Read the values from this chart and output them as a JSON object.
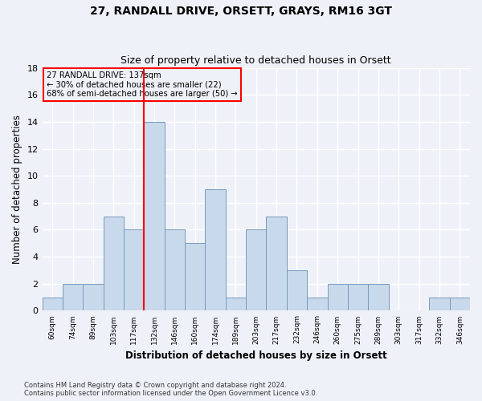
{
  "title_line1": "27, RANDALL DRIVE, ORSETT, GRAYS, RM16 3GT",
  "title_line2": "Size of property relative to detached houses in Orsett",
  "xlabel": "Distribution of detached houses by size in Orsett",
  "ylabel": "Number of detached properties",
  "footer": "Contains HM Land Registry data © Crown copyright and database right 2024.\nContains public sector information licensed under the Open Government Licence v3.0.",
  "bar_labels": [
    "60sqm",
    "74sqm",
    "89sqm",
    "103sqm",
    "117sqm",
    "132sqm",
    "146sqm",
    "160sqm",
    "174sqm",
    "189sqm",
    "203sqm",
    "217sqm",
    "232sqm",
    "246sqm",
    "260sqm",
    "275sqm",
    "289sqm",
    "303sqm",
    "317sqm",
    "332sqm",
    "346sqm"
  ],
  "bar_values": [
    1,
    2,
    2,
    7,
    6,
    14,
    6,
    5,
    9,
    1,
    6,
    7,
    3,
    1,
    2,
    2,
    2,
    0,
    0,
    1,
    1
  ],
  "bar_color": "#c9d9ec",
  "bar_edge_color": "#7799bb",
  "bg_color": "#eef2f8",
  "grid_color": "#ffffff",
  "vline_color": "red",
  "vline_x_index": 5,
  "annotation_line1": "27 RANDALL DRIVE: 137sqm",
  "annotation_line2": "← 30% of detached houses are smaller (22)",
  "annotation_line3": "68% of semi-detached houses are larger (50) →",
  "annotation_box_color": "red",
  "ylim": [
    0,
    18
  ],
  "yticks": [
    0,
    2,
    4,
    6,
    8,
    10,
    12,
    14,
    16,
    18
  ]
}
